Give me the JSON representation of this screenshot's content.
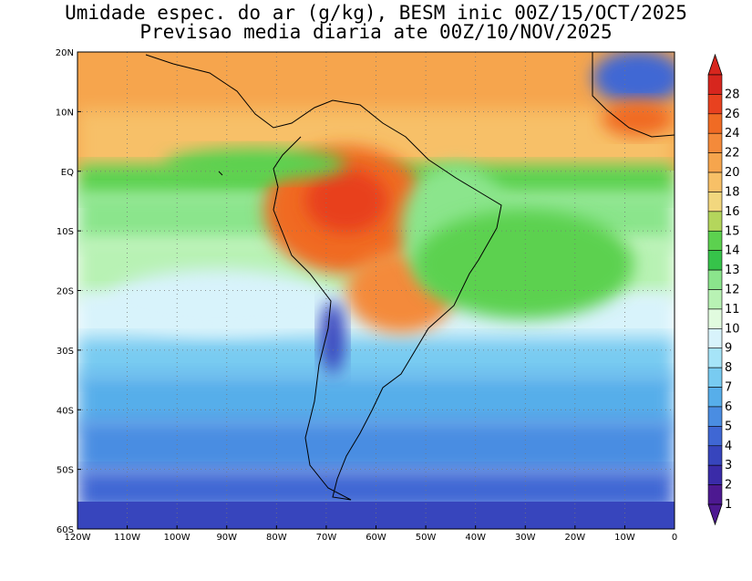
{
  "title_line1": "Umidade espec. do ar (g/kg), BESM inic 00Z/15/OCT/2025",
  "title_line2": "Previsao media diaria ate 00Z/10/NOV/2025",
  "map": {
    "lon_range": [
      -120,
      0
    ],
    "lat_range": [
      -60,
      20
    ],
    "lon_ticks": [
      "120W",
      "110W",
      "100W",
      "90W",
      "80W",
      "70W",
      "60W",
      "50W",
      "40W",
      "30W",
      "20W",
      "10W",
      "0"
    ],
    "lat_ticks": [
      "20N",
      "10N",
      "EQ",
      "10S",
      "20S",
      "30S",
      "40S",
      "50S",
      "60S"
    ],
    "grid": true
  },
  "colorbar": {
    "labels": [
      "28",
      "26",
      "24",
      "22",
      "20",
      "18",
      "16",
      "15",
      "14",
      "13",
      "12",
      "11",
      "10",
      "9",
      "8",
      "7",
      "6",
      "5",
      "4",
      "3",
      "2",
      "1"
    ],
    "colors": [
      "#d7261e",
      "#e8411f",
      "#f06b24",
      "#f48a3a",
      "#f6a54d",
      "#f7c067",
      "#f2d77e",
      "#b4d65c",
      "#5cd14f",
      "#36c34a",
      "#8be58c",
      "#b8f2b4",
      "#e1fbdf",
      "#d8f3fb",
      "#a6e4f8",
      "#78cbf1",
      "#57aeea",
      "#4a8de2",
      "#3f67d4",
      "#3745bd",
      "#3a2ba8",
      "#4d1991"
    ]
  }
}
